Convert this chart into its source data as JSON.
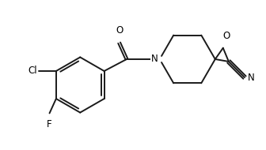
{
  "background_color": "#ffffff",
  "line_color": "#1a1a1a",
  "line_width": 1.4,
  "text_color": "#000000",
  "font_size": 8.5,
  "figure_width": 3.36,
  "figure_height": 1.9,
  "dpi": 100,
  "xlim": [
    0,
    10
  ],
  "ylim": [
    0,
    5.65
  ]
}
